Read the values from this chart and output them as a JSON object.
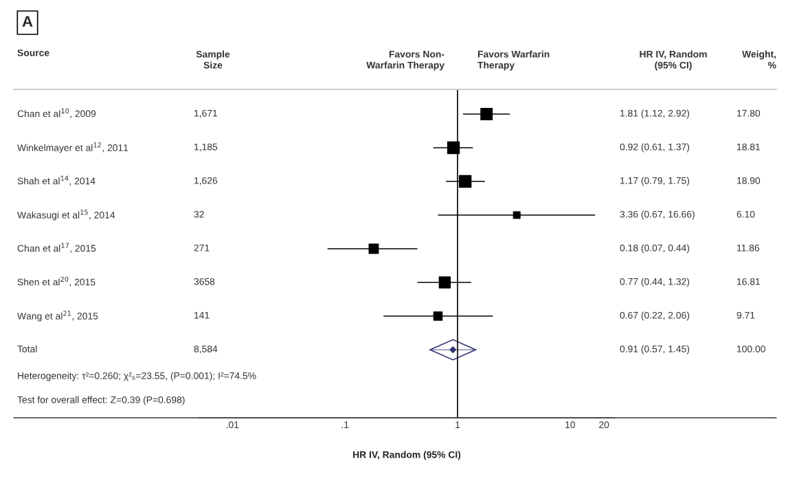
{
  "chart_data": {
    "type": "scatter",
    "orientation": "horizontal",
    "title": "A",
    "xlabel": "HR IV, Random (95% CI)",
    "categories": [
      "Chan et al$^{10}$, 2009",
      "Winkelmayer et al$^{12}$, 2011",
      "Shah et al$^{14}$, 2014",
      "Wakasugi et al$^{15}$, 2014",
      "Chan et al$^{17}$, 2015",
      "Shen et al$^{20}$, 2015",
      "Wang et al$^{21}$, 2015",
      "Total"
    ],
    "series": [
      {
        "type": "bubble",
        "color": "#000000",
        "marker": "square",
        "values": [
          1.81,
          0.92,
          1.17,
          3.36,
          0.18,
          0.77,
          0.67,
          null
        ],
        "errors": [
          [
            1.12,
            2.92
          ],
          [
            0.61,
            1.37
          ],
          [
            0.79,
            1.75
          ],
          [
            0.67,
            16.66
          ],
          [
            0.07,
            0.44
          ],
          [
            0.44,
            1.32
          ],
          [
            0.22,
            2.06
          ],
          null
        ],
        "sizes": [
          0.94,
          0.995,
          1,
          0.32,
          0.63,
          0.89,
          0.51,
          null
        ]
      },
      {
        "color": "#2e3470",
        "marker": "diamond",
        "values": [
          null,
          null,
          null,
          null,
          null,
          null,
          null,
          0.91
        ],
        "errors": [
          null,
          null,
          null,
          null,
          null,
          null,
          null,
          [
            0.57,
            1.45
          ]
        ]
      }
    ],
    "log": "x",
    "xlim": [
      0.005,
      25
    ],
    "xticks": [
      {
        "value": 0.01,
        "label": ".01"
      },
      {
        "value": 0.1,
        "label": ".1"
      },
      1,
      10,
      20
    ],
    "ref_lines": [
      {
        "axis": "x",
        "value": 1,
        "color": "#000000"
      }
    ],
    "grid": false,
    "annotations": [
      "Source",
      "Sample\nSize",
      "Favors Non-\nWarfarin Therapy",
      "Favors Warfarin\nTherapy",
      "HR IV, Random\n(95% CI)",
      "Weight,\n%",
      "1,671",
      "1,185",
      "1,626",
      "32",
      "271",
      "3658",
      "141",
      "8,584",
      "17.80",
      "18.81",
      "18.90",
      "6.10",
      "11.86",
      "16.81",
      "9.71",
      "100.00",
      "1.81 (1.12, 2.92)",
      "0.92 (0.61, 1.37)",
      "1.17 (0.79, 1.75)",
      "3.36 (0.67, 16.66)",
      "0.18 (0.07, 0.44)",
      "0.77 (0.44, 1.32)",
      "0.67 (0.22, 2.06)",
      "0.91 (0.57, 1.45)",
      "Heterogeneity: τ²=0.260; χ²₆=23.55, (P=0.001); I²=74.5%",
      "Test for overall effect: Z=0.39 (P=0.698)"
    ]
  }
}
